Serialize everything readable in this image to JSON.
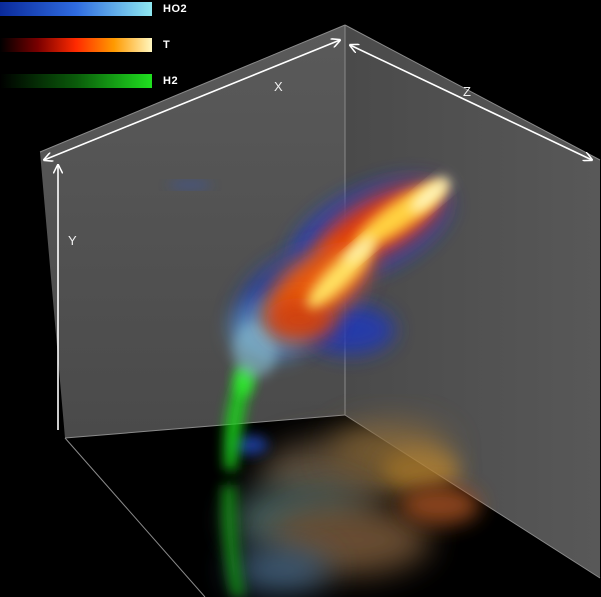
{
  "legend": [
    {
      "label": "HO2",
      "colors": [
        "#0a2a9a",
        "#2f6be0",
        "#8fe8f0"
      ]
    },
    {
      "label": "T",
      "colors": [
        "#000000",
        "#7a0000",
        "#ff2a00",
        "#ff9a00",
        "#fff7c0"
      ]
    },
    {
      "label": "H2",
      "colors": [
        "#000000",
        "#0a5a0a",
        "#1fe01f"
      ]
    }
  ],
  "axes": {
    "x": "X",
    "y": "Y",
    "z": "Z"
  }
}
